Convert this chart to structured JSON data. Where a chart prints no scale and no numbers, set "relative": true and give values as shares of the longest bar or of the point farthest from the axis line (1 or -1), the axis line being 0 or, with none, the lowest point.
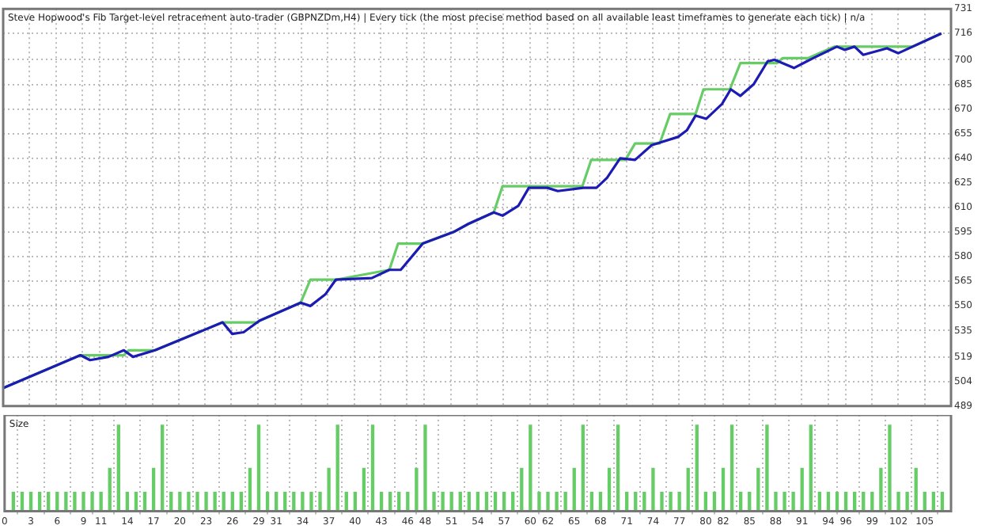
{
  "chart_data": [
    {
      "type": "line",
      "title": "Steve Hopwood's Fib Target-level retracement auto-trader (GBPNZDm,H4) | Every tick (the most precise method based on all available least timeframes to generate each tick) | n/a",
      "series": [
        {
          "color": "#66cc66",
          "x": [
            0,
            8.8,
            13.75,
            14.3,
            17.3,
            25,
            29,
            29.2,
            33.9,
            35,
            37.9,
            44,
            45,
            47.8,
            51.3,
            53,
            55.9,
            56.9,
            66,
            67,
            70.9,
            72,
            74.8,
            76,
            78.9,
            79.8,
            82.8,
            84,
            88.2,
            88.8,
            91.7,
            94.7,
            103.6,
            106.9
          ],
          "values": [
            500,
            520,
            520,
            523,
            523,
            540,
            540,
            541,
            552,
            566,
            566,
            572,
            588,
            588,
            595,
            600,
            607,
            623,
            623,
            639,
            639,
            649,
            649,
            667,
            667,
            682,
            682,
            698,
            698,
            701,
            701,
            708,
            708,
            716
          ]
        },
        {
          "color": "#1c1cb4",
          "x": [
            0,
            8.8,
            9.9,
            12,
            13.75,
            14.8,
            17.3,
            25,
            26.1,
            27.4,
            29.2,
            33.9,
            35,
            36.7,
            37.9,
            42,
            44,
            45.3,
            47.8,
            51.3,
            53,
            55.9,
            56.9,
            58.7,
            59.9,
            62,
            63.2,
            66.1,
            67.6,
            68.8,
            70.3,
            72,
            73.9,
            76.9,
            77.9,
            78.9,
            80.1,
            81.9,
            82.9,
            84,
            85.5,
            87.1,
            87.9,
            90.1,
            92.3,
            95,
            95.9,
            97,
            98,
            100.7,
            102,
            106.9
          ],
          "values": [
            500,
            520,
            517,
            519,
            523,
            519,
            523,
            540,
            533,
            534,
            541,
            552,
            550,
            557,
            566,
            567,
            572,
            572,
            588,
            595,
            600,
            607,
            605,
            611,
            622,
            622,
            620,
            622,
            622,
            628,
            640,
            639,
            648,
            653,
            657,
            666,
            664,
            673,
            682,
            678,
            685,
            699,
            700,
            695,
            701,
            708,
            706,
            708,
            703,
            707,
            704,
            716
          ]
        }
      ],
      "xlim": [
        0,
        108
      ],
      "xticks": [
        0,
        3,
        6,
        9,
        11,
        14,
        17,
        20,
        23,
        26,
        29,
        31,
        34,
        37,
        40,
        43,
        46,
        48,
        51,
        54,
        57,
        60,
        62,
        65,
        68,
        71,
        74,
        77,
        80,
        82,
        85,
        88,
        91,
        94,
        96,
        99,
        102,
        105
      ],
      "ylim": [
        489,
        731
      ],
      "yticks": [
        489,
        504,
        519,
        535,
        550,
        565,
        580,
        595,
        610,
        625,
        640,
        655,
        670,
        685,
        700,
        716,
        731
      ],
      "tick_labels": "y",
      "grid": true,
      "marker": "none"
    },
    {
      "type": "bar",
      "title": "Size",
      "relative": true,
      "color": "#66cc66",
      "x": [
        1,
        2,
        3,
        4,
        5,
        6,
        7,
        8,
        9,
        10,
        11,
        12,
        13,
        14,
        15,
        16,
        17,
        18,
        19,
        20,
        21,
        22,
        23,
        24,
        25,
        26,
        27,
        28,
        29,
        30,
        31,
        32,
        33,
        34,
        35,
        36,
        37,
        38,
        39,
        40,
        41,
        42,
        43,
        44,
        45,
        46,
        47,
        48,
        49,
        50,
        51,
        52,
        53,
        54,
        55,
        56,
        57,
        58,
        59,
        60,
        61,
        62,
        63,
        64,
        65,
        66,
        67,
        68,
        69,
        70,
        71,
        72,
        73,
        74,
        75,
        76,
        77,
        78,
        79,
        80,
        81,
        82,
        83,
        84,
        85,
        86,
        87,
        88,
        89,
        90,
        91,
        92,
        93,
        94,
        95,
        96,
        97,
        98,
        99,
        100,
        101,
        102,
        103,
        104,
        105,
        106,
        107
      ],
      "values": [
        0.22,
        0.22,
        0.22,
        0.22,
        0.22,
        0.22,
        0.22,
        0.22,
        0.22,
        0.22,
        0.22,
        0.5,
        1,
        0.22,
        0.22,
        0.22,
        0.5,
        1,
        0.22,
        0.22,
        0.22,
        0.22,
        0.22,
        0.22,
        0.22,
        0.22,
        0.22,
        0.5,
        1,
        0.22,
        0.22,
        0.22,
        0.22,
        0.22,
        0.22,
        0.22,
        0.5,
        1,
        0.22,
        0.22,
        0.5,
        1,
        0.22,
        0.22,
        0.22,
        0.22,
        0.5,
        1,
        0.22,
        0.22,
        0.22,
        0.22,
        0.22,
        0.22,
        0.22,
        0.22,
        0.22,
        0.22,
        0.5,
        1,
        0.22,
        0.22,
        0.22,
        0.22,
        0.5,
        1,
        0.22,
        0.22,
        0.5,
        1,
        0.22,
        0.22,
        0.22,
        0.5,
        0.22,
        0.22,
        0.22,
        0.5,
        1,
        0.22,
        0.22,
        0.5,
        1,
        0.22,
        0.22,
        0.5,
        1,
        0.22,
        0.22,
        0.22,
        0.5,
        1,
        0.22,
        0.22,
        0.22,
        0.22,
        0.22,
        0.22,
        0.22,
        0.5,
        1,
        0.22,
        0.22,
        0.5,
        0.22,
        0.22,
        0.22
      ],
      "xlim": [
        0,
        108
      ],
      "xticks": [
        0,
        3,
        6,
        9,
        11,
        14,
        17,
        20,
        23,
        26,
        29,
        31,
        34,
        37,
        40,
        43,
        46,
        48,
        51,
        54,
        57,
        60,
        62,
        65,
        68,
        71,
        74,
        77,
        80,
        82,
        85,
        88,
        91,
        94,
        96,
        99,
        102,
        105
      ],
      "tick_labels": "x",
      "grid": "x"
    }
  ]
}
